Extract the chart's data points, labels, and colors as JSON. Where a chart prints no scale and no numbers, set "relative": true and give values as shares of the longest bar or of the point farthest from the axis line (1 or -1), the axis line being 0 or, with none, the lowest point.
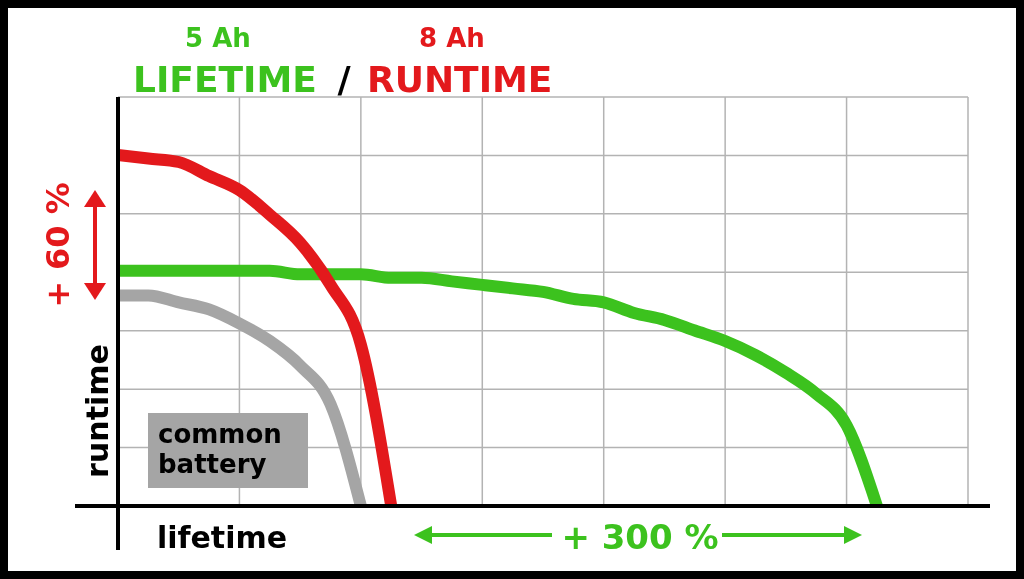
{
  "chart_data": {
    "type": "line",
    "relative": true,
    "xlabel": "lifetime",
    "ylabel": "runtime",
    "grid": true,
    "legend": "top left",
    "line_style": "solid",
    "categories": [
      null,
      null,
      null,
      null,
      null,
      null,
      null,
      null,
      null,
      null,
      null,
      null,
      null,
      null,
      null,
      null,
      null,
      null,
      null,
      null,
      null,
      null,
      null,
      null,
      null,
      null,
      null,
      null,
      null
    ],
    "series": [
      {
        "name": "LIFETIME",
        "color": "#3cc21e",
        "values": [
          0.67,
          0.67,
          0.67,
          0.67,
          0.67,
          0.67,
          0.66,
          0.66,
          0.66,
          0.65,
          0.65,
          0.64,
          0.63,
          0.62,
          0.61,
          0.59,
          0.58,
          0.55,
          0.53,
          0.5,
          0.47,
          0.43,
          0.38,
          0.32,
          0.23,
          0,
          null,
          null,
          null
        ]
      },
      {
        "name": "RUNTIME",
        "color": "#e3191c",
        "values": [
          1,
          0.99,
          0.98,
          0.94,
          0.9,
          0.83,
          0.75,
          0.63,
          0.46,
          0,
          null,
          null,
          null,
          null,
          null,
          null,
          null,
          null,
          null,
          null,
          null,
          null,
          null,
          null,
          null,
          null,
          null,
          null,
          null
        ]
      },
      {
        "name": "common battery",
        "color": "#a5a5a5",
        "values": [
          0.6,
          0.6,
          0.58,
          0.56,
          0.52,
          0.47,
          0.4,
          0.29,
          0,
          null,
          null,
          null,
          null,
          null,
          null,
          null,
          null,
          null,
          null,
          null,
          null,
          null,
          null,
          null,
          null,
          null,
          null,
          null,
          null
        ]
      }
    ],
    "annotations": [
      "5 Ah",
      "8 Ah",
      "/",
      "+ 60 %",
      "+ 300 %"
    ]
  }
}
